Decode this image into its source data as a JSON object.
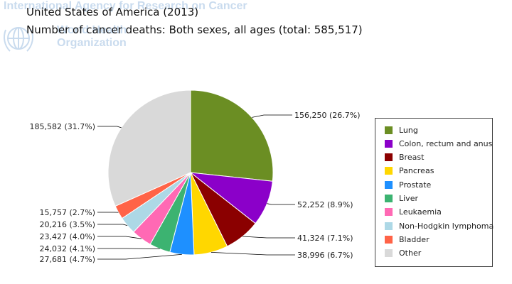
{
  "watermark": {
    "line1": "International Agency for Research on Cancer",
    "line2": "World Health",
    "line3": "Organization"
  },
  "titles": {
    "line1": "United States of America (2013)",
    "line2": "Number of cancer deaths: Both sexes, all ages (total: 585,517)"
  },
  "chart_data": {
    "type": "pie",
    "total": 585517,
    "slices": [
      {
        "name": "Lung",
        "value": 156250,
        "label": "156,250 (26.7%)",
        "color": "#6b8e23"
      },
      {
        "name": "Colon, rectum and anus",
        "value": 52252,
        "label": "52,252 (8.9%)",
        "color": "#8b00c9"
      },
      {
        "name": "Breast",
        "value": 41324,
        "label": "41,324 (7.1%)",
        "color": "#8b0000"
      },
      {
        "name": "Pancreas",
        "value": 38996,
        "label": "38,996 (6.7%)",
        "color": "#ffd700"
      },
      {
        "name": "Prostate",
        "value": 27681,
        "label": "27,681 (4.7%)",
        "color": "#1e90ff"
      },
      {
        "name": "Liver",
        "value": 24032,
        "label": "24,032 (4.1%)",
        "color": "#3cb371"
      },
      {
        "name": "Leukaemia",
        "value": 23427,
        "label": "23,427 (4.0%)",
        "color": "#ff69b4"
      },
      {
        "name": "Non-Hodgkin lymphoma",
        "value": 20216,
        "label": "20,216 (3.5%)",
        "color": "#add8e6"
      },
      {
        "name": "Bladder",
        "value": 15757,
        "label": "15,757 (2.7%)",
        "color": "#ff6347"
      },
      {
        "name": "Other",
        "value": 185582,
        "label": "185,582 (31.7%)",
        "color": "#d9d9d9"
      }
    ],
    "legend_position": "right"
  }
}
